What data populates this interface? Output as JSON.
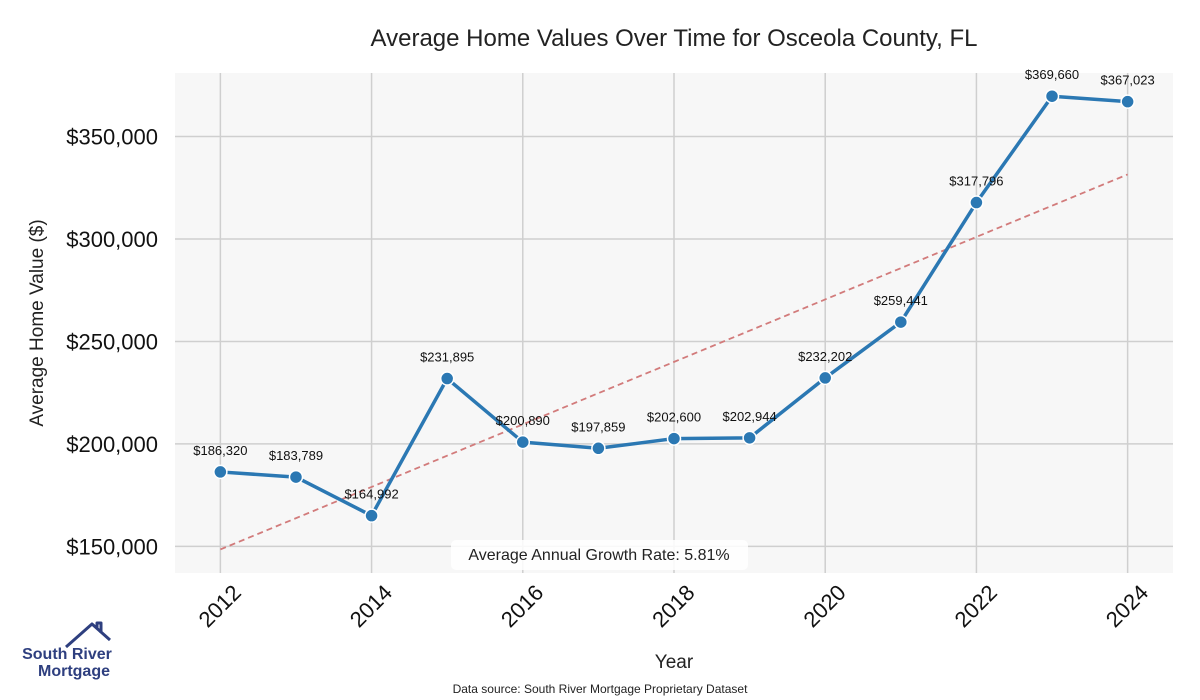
{
  "chart_data": {
    "type": "line",
    "title": "Average Home Values Over Time for Osceola County, FL",
    "xlabel": "Year",
    "ylabel": "Average Home Value ($)",
    "x": [
      2012,
      2013,
      2014,
      2015,
      2016,
      2017,
      2018,
      2019,
      2020,
      2021,
      2022,
      2023,
      2024
    ],
    "values": [
      186320,
      183789,
      164992,
      231895,
      200890,
      197859,
      202600,
      202944,
      232202,
      259441,
      317796,
      369660,
      367023
    ],
    "data_labels": [
      "$186,320",
      "$183,789",
      "$164,992",
      "$231,895",
      "$200,890",
      "$197,859",
      "$202,600",
      "$202,944",
      "$232,202",
      "$259,441",
      "$317,796",
      "$369,660",
      "$367,023"
    ],
    "xticks": [
      2012,
      2014,
      2016,
      2018,
      2020,
      2022,
      2024
    ],
    "xtick_labels": [
      "2012",
      "2014",
      "2016",
      "2018",
      "2020",
      "2022",
      "2024"
    ],
    "yticks": [
      150000,
      200000,
      250000,
      300000,
      350000
    ],
    "ytick_labels": [
      "$150,000",
      "$200,000",
      "$250,000",
      "$300,000",
      "$350,000"
    ],
    "xlim": [
      2011.4,
      2024.6
    ],
    "ylim": [
      137000,
      381000
    ],
    "trend": {
      "start": [
        2012,
        148500
      ],
      "end": [
        2024,
        331500
      ]
    },
    "annotation": "Average Annual Growth Rate: 5.81%",
    "grid": true,
    "colors": {
      "line": "#2b78b3",
      "trend": "#d27b7b",
      "grid": "#cfcfcf",
      "plot_bg": "#f7f7f7"
    }
  },
  "footer": {
    "source": "Data source: South River Mortgage Proprietary Dataset"
  },
  "logo": {
    "line1": "South River",
    "line2": "Mortgage",
    "color": "#2e3f7f"
  }
}
